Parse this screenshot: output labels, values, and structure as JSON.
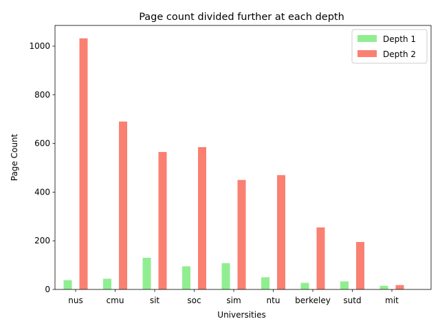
{
  "chart_data": {
    "type": "bar",
    "title": "Page count divided further at each depth",
    "xlabel": "Universities",
    "ylabel": "Page Count",
    "categories": [
      "nus",
      "cmu",
      "sit",
      "soc",
      "sim",
      "ntu",
      "berkeley",
      "sutd",
      "mit"
    ],
    "series": [
      {
        "name": "Depth 1",
        "color": "#90ee90",
        "values": [
          38,
          44,
          130,
          95,
          108,
          50,
          27,
          33,
          15
        ]
      },
      {
        "name": "Depth 2",
        "color": "#fa8072",
        "values": [
          1032,
          690,
          565,
          585,
          450,
          470,
          255,
          195,
          18
        ]
      }
    ],
    "ylim": [
      0,
      1085
    ],
    "yticks": [
      0,
      200,
      400,
      600,
      800,
      1000
    ],
    "grid": false,
    "legend_position": "top-right"
  }
}
